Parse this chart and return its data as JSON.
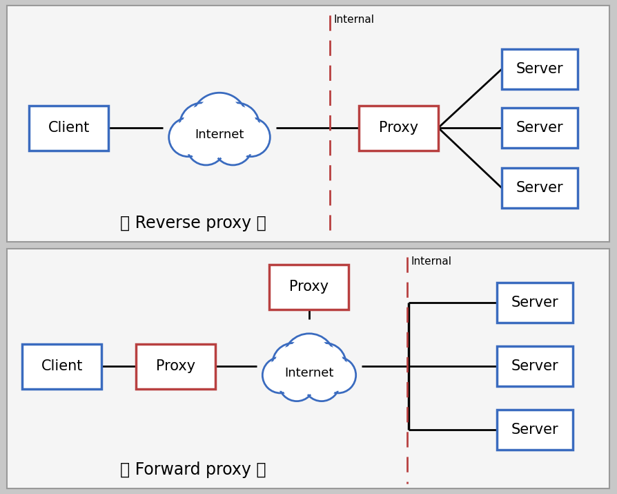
{
  "bg_color": "#c8c8c8",
  "panel_color": "#f5f5f5",
  "box_blue_edge": "#3a6bbf",
  "box_red_edge": "#b84040",
  "line_color": "#000000",
  "dashed_color": "#b84040",
  "cloud_fill": "#ffffff",
  "cloud_edge": "#3a6bbf",
  "text_color": "#000000",
  "reverse_label": "〈 Reverse proxy 〉",
  "forward_label": "〈 Forward proxy 〉",
  "internal_label": "Internal",
  "font_size_box": 15,
  "font_size_label": 17,
  "font_size_internal": 11
}
